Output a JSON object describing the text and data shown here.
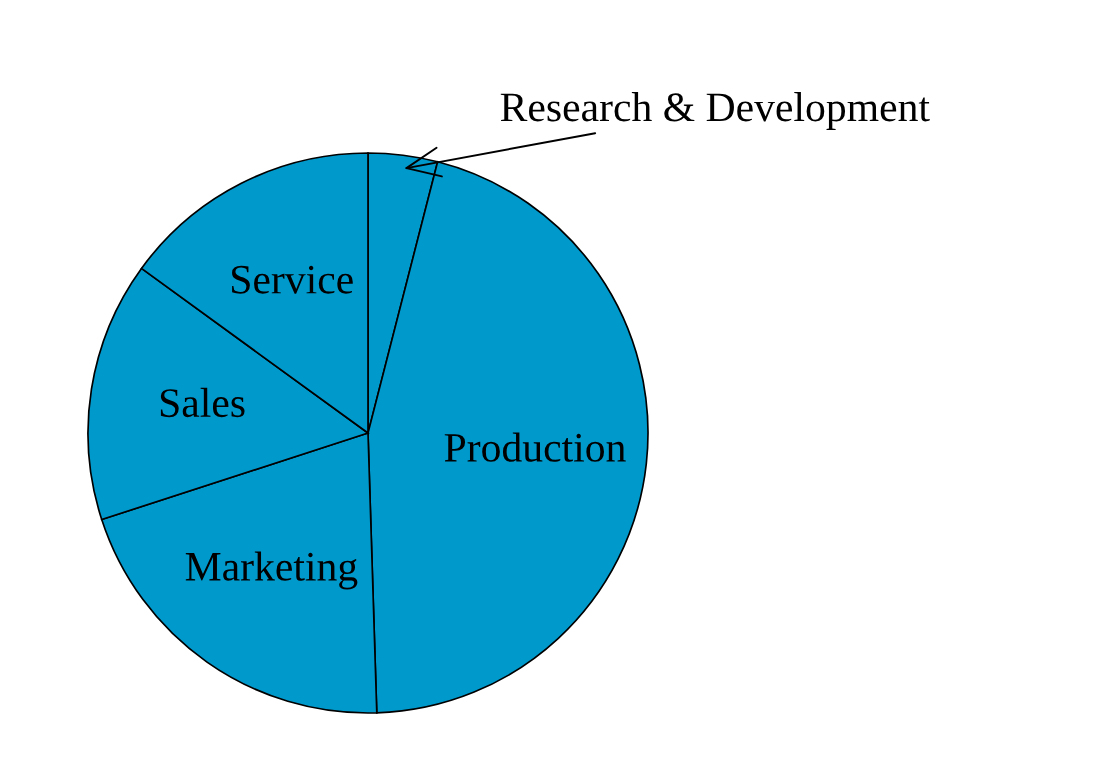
{
  "chart_data": {
    "type": "pie",
    "categories": [
      "Research & Development",
      "Production",
      "Marketing",
      "Sales",
      "Service"
    ],
    "values": [
      4,
      45.5,
      20.5,
      15,
      15
    ],
    "colors": [
      "#0099cc",
      "#0099cc",
      "#0099cc",
      "#0099cc",
      "#0099cc"
    ]
  }
}
